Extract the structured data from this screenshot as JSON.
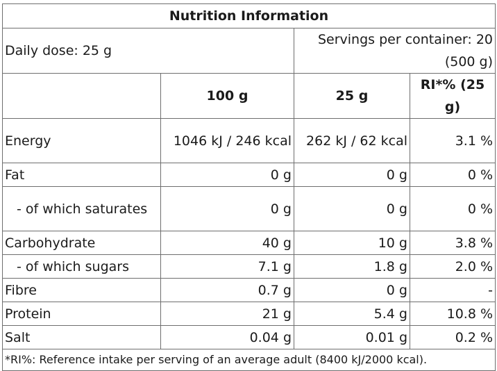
{
  "title": "Nutrition Information",
  "daily_dose": "Daily dose: 25 g",
  "servings": "Servings per container: 20 (500 g)",
  "columns": [
    "100 g",
    "25 g",
    "RI*% (25 g)"
  ],
  "rows": [
    {
      "label": "Energy",
      "v100": "1046 kJ / 246 kcal",
      "v25": "262 kJ / 62 kcal",
      "ri": "3.1 %"
    },
    {
      "label": "Fat",
      "v100": "0 g",
      "v25": "0 g",
      "ri": "0 %"
    },
    {
      "label": "- of which saturates",
      "v100": "0 g",
      "v25": "0 g",
      "ri": "0 %"
    },
    {
      "label": "Carbohydrate",
      "v100": "40 g",
      "v25": "10 g",
      "ri": "3.8 %"
    },
    {
      "label": "- of which sugars",
      "v100": "7.1 g",
      "v25": "1.8 g",
      "ri": "2.0 %"
    },
    {
      "label": "Fibre",
      "v100": "0.7 g",
      "v25": "0 g",
      "ri": "-"
    },
    {
      "label": "Protein",
      "v100": "21 g",
      "v25": "5.4 g",
      "ri": "10.8 %"
    },
    {
      "label": "Salt",
      "v100": "0.04 g",
      "v25": "0.01 g",
      "ri": "0.2 %"
    }
  ],
  "footnote": "*RI%: Reference intake per serving of an average adult (8400 kJ/2000 kcal)."
}
